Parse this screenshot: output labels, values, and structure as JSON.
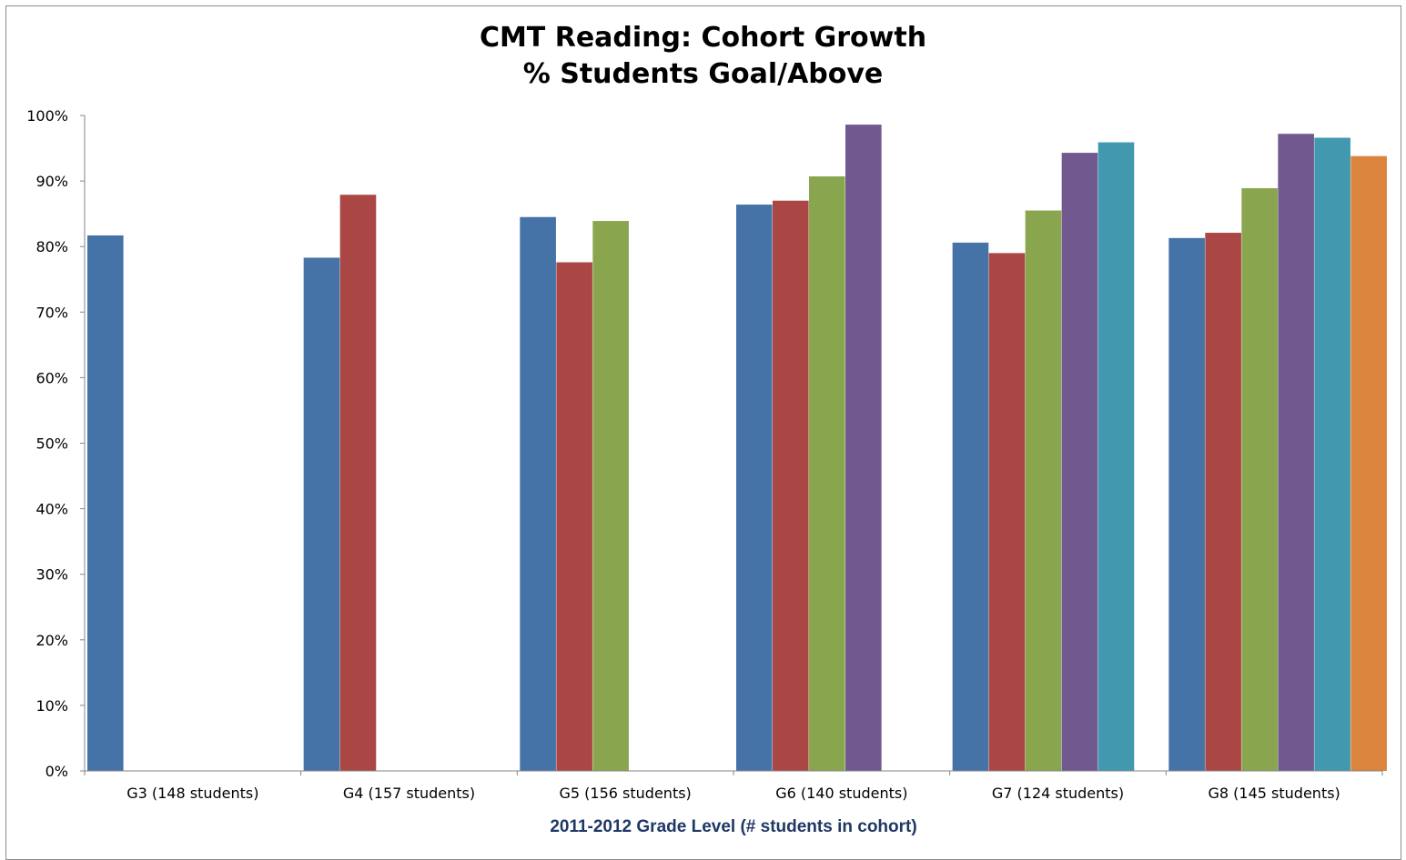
{
  "chart_data": {
    "type": "bar",
    "title": "CMT Reading: Cohort Growth",
    "subtitle": "% Students Goal/Above",
    "xlabel": "2011-2012 Grade Level (# students in cohort)",
    "ylabel": "",
    "ylim": [
      0,
      100
    ],
    "y_ticks": [
      "0%",
      "10%",
      "20%",
      "30%",
      "40%",
      "50%",
      "60%",
      "70%",
      "80%",
      "90%",
      "100%"
    ],
    "grid": false,
    "legend": "none",
    "categories": [
      "G3 (148 students)",
      "G4 (157 students)",
      "G5 (156 students)",
      "G6 (140 students)",
      "G7 (124 students)",
      "G8 (145 students)"
    ],
    "series": [
      {
        "color": "#4572a7",
        "values": [
          81.7,
          78.3,
          84.5,
          86.4,
          80.6,
          81.3
        ]
      },
      {
        "color": "#aa4643",
        "values": [
          null,
          87.9,
          77.6,
          87.0,
          79.0,
          82.1
        ]
      },
      {
        "color": "#89a54e",
        "values": [
          null,
          null,
          83.9,
          90.7,
          85.5,
          88.9
        ]
      },
      {
        "color": "#71588f",
        "values": [
          null,
          null,
          null,
          98.6,
          94.3,
          97.2
        ]
      },
      {
        "color": "#4198af",
        "values": [
          null,
          null,
          null,
          null,
          95.9,
          96.6
        ]
      },
      {
        "color": "#db843d",
        "values": [
          null,
          null,
          null,
          null,
          null,
          93.8
        ]
      }
    ]
  }
}
